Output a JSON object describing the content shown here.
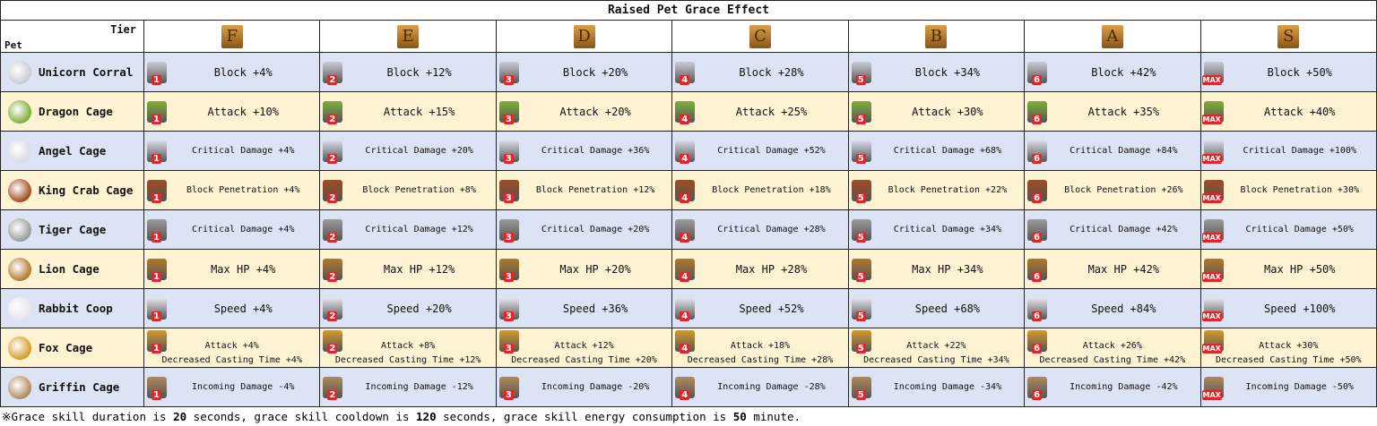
{
  "title": "Raised Pet Grace Effect",
  "corner": {
    "tier": "Tier",
    "pet": "Pet"
  },
  "tiers": [
    "F",
    "E",
    "D",
    "C",
    "B",
    "A",
    "S"
  ],
  "badges": [
    "1",
    "2",
    "3",
    "4",
    "5",
    "6",
    "MAX"
  ],
  "rows": [
    {
      "name": "Unicorn Corral",
      "effects": [
        "Block +4%",
        "Block +12%",
        "Block +20%",
        "Block +28%",
        "Block +34%",
        "Block +42%",
        "Block +50%"
      ]
    },
    {
      "name": "Dragon Cage",
      "effects": [
        "Attack +10%",
        "Attack +15%",
        "Attack +20%",
        "Attack +25%",
        "Attack +30%",
        "Attack +35%",
        "Attack +40%"
      ]
    },
    {
      "name": "Angel Cage",
      "effects": [
        "Critical Damage +4%",
        "Critical Damage +20%",
        "Critical Damage +36%",
        "Critical Damage +52%",
        "Critical Damage +68%",
        "Critical Damage +84%",
        "Critical Damage +100%"
      ]
    },
    {
      "name": "King Crab Cage",
      "effects": [
        "Block Penetration +4%",
        "Block Penetration +8%",
        "Block Penetration +12%",
        "Block Penetration +18%",
        "Block Penetration +22%",
        "Block Penetration +26%",
        "Block Penetration +30%"
      ]
    },
    {
      "name": "Tiger Cage",
      "effects": [
        "Critical Damage +4%",
        "Critical Damage +12%",
        "Critical Damage +20%",
        "Critical Damage +28%",
        "Critical Damage +34%",
        "Critical Damage +42%",
        "Critical Damage +50%"
      ]
    },
    {
      "name": "Lion Cage",
      "effects": [
        "Max HP +4%",
        "Max HP +12%",
        "Max HP +20%",
        "Max HP +28%",
        "Max HP +34%",
        "Max HP +42%",
        "Max HP +50%"
      ]
    },
    {
      "name": "Rabbit Coop",
      "effects": [
        "Speed +4%",
        "Speed +20%",
        "Speed +36%",
        "Speed +52%",
        "Speed +68%",
        "Speed +84%",
        "Speed +100%"
      ]
    },
    {
      "name": "Fox Cage",
      "effects": [
        "Attack +4%",
        "Attack +8%",
        "Attack +12%",
        "Attack +18%",
        "Attack +22%",
        "Attack +26%",
        "Attack +30%"
      ],
      "effects2": [
        "Decreased Casting Time +4%",
        "Decreased Casting Time +12%",
        "Decreased Casting Time +20%",
        "Decreased Casting Time +28%",
        "Decreased Casting Time +34%",
        "Decreased Casting Time +42%",
        "Decreased Casting Time +50%"
      ]
    },
    {
      "name": "Griffin Cage",
      "effects": [
        "Incoming Damage -4%",
        "Incoming Damage -12%",
        "Incoming Damage -20%",
        "Incoming Damage -28%",
        "Incoming Damage -34%",
        "Incoming Damage -42%",
        "Incoming Damage -50%"
      ]
    }
  ],
  "footer": [
    "※Grace skill duration is ",
    "20",
    " seconds, grace skill cooldown is ",
    "120",
    " seconds, grace skill energy consumption is ",
    "50",
    " minute."
  ]
}
